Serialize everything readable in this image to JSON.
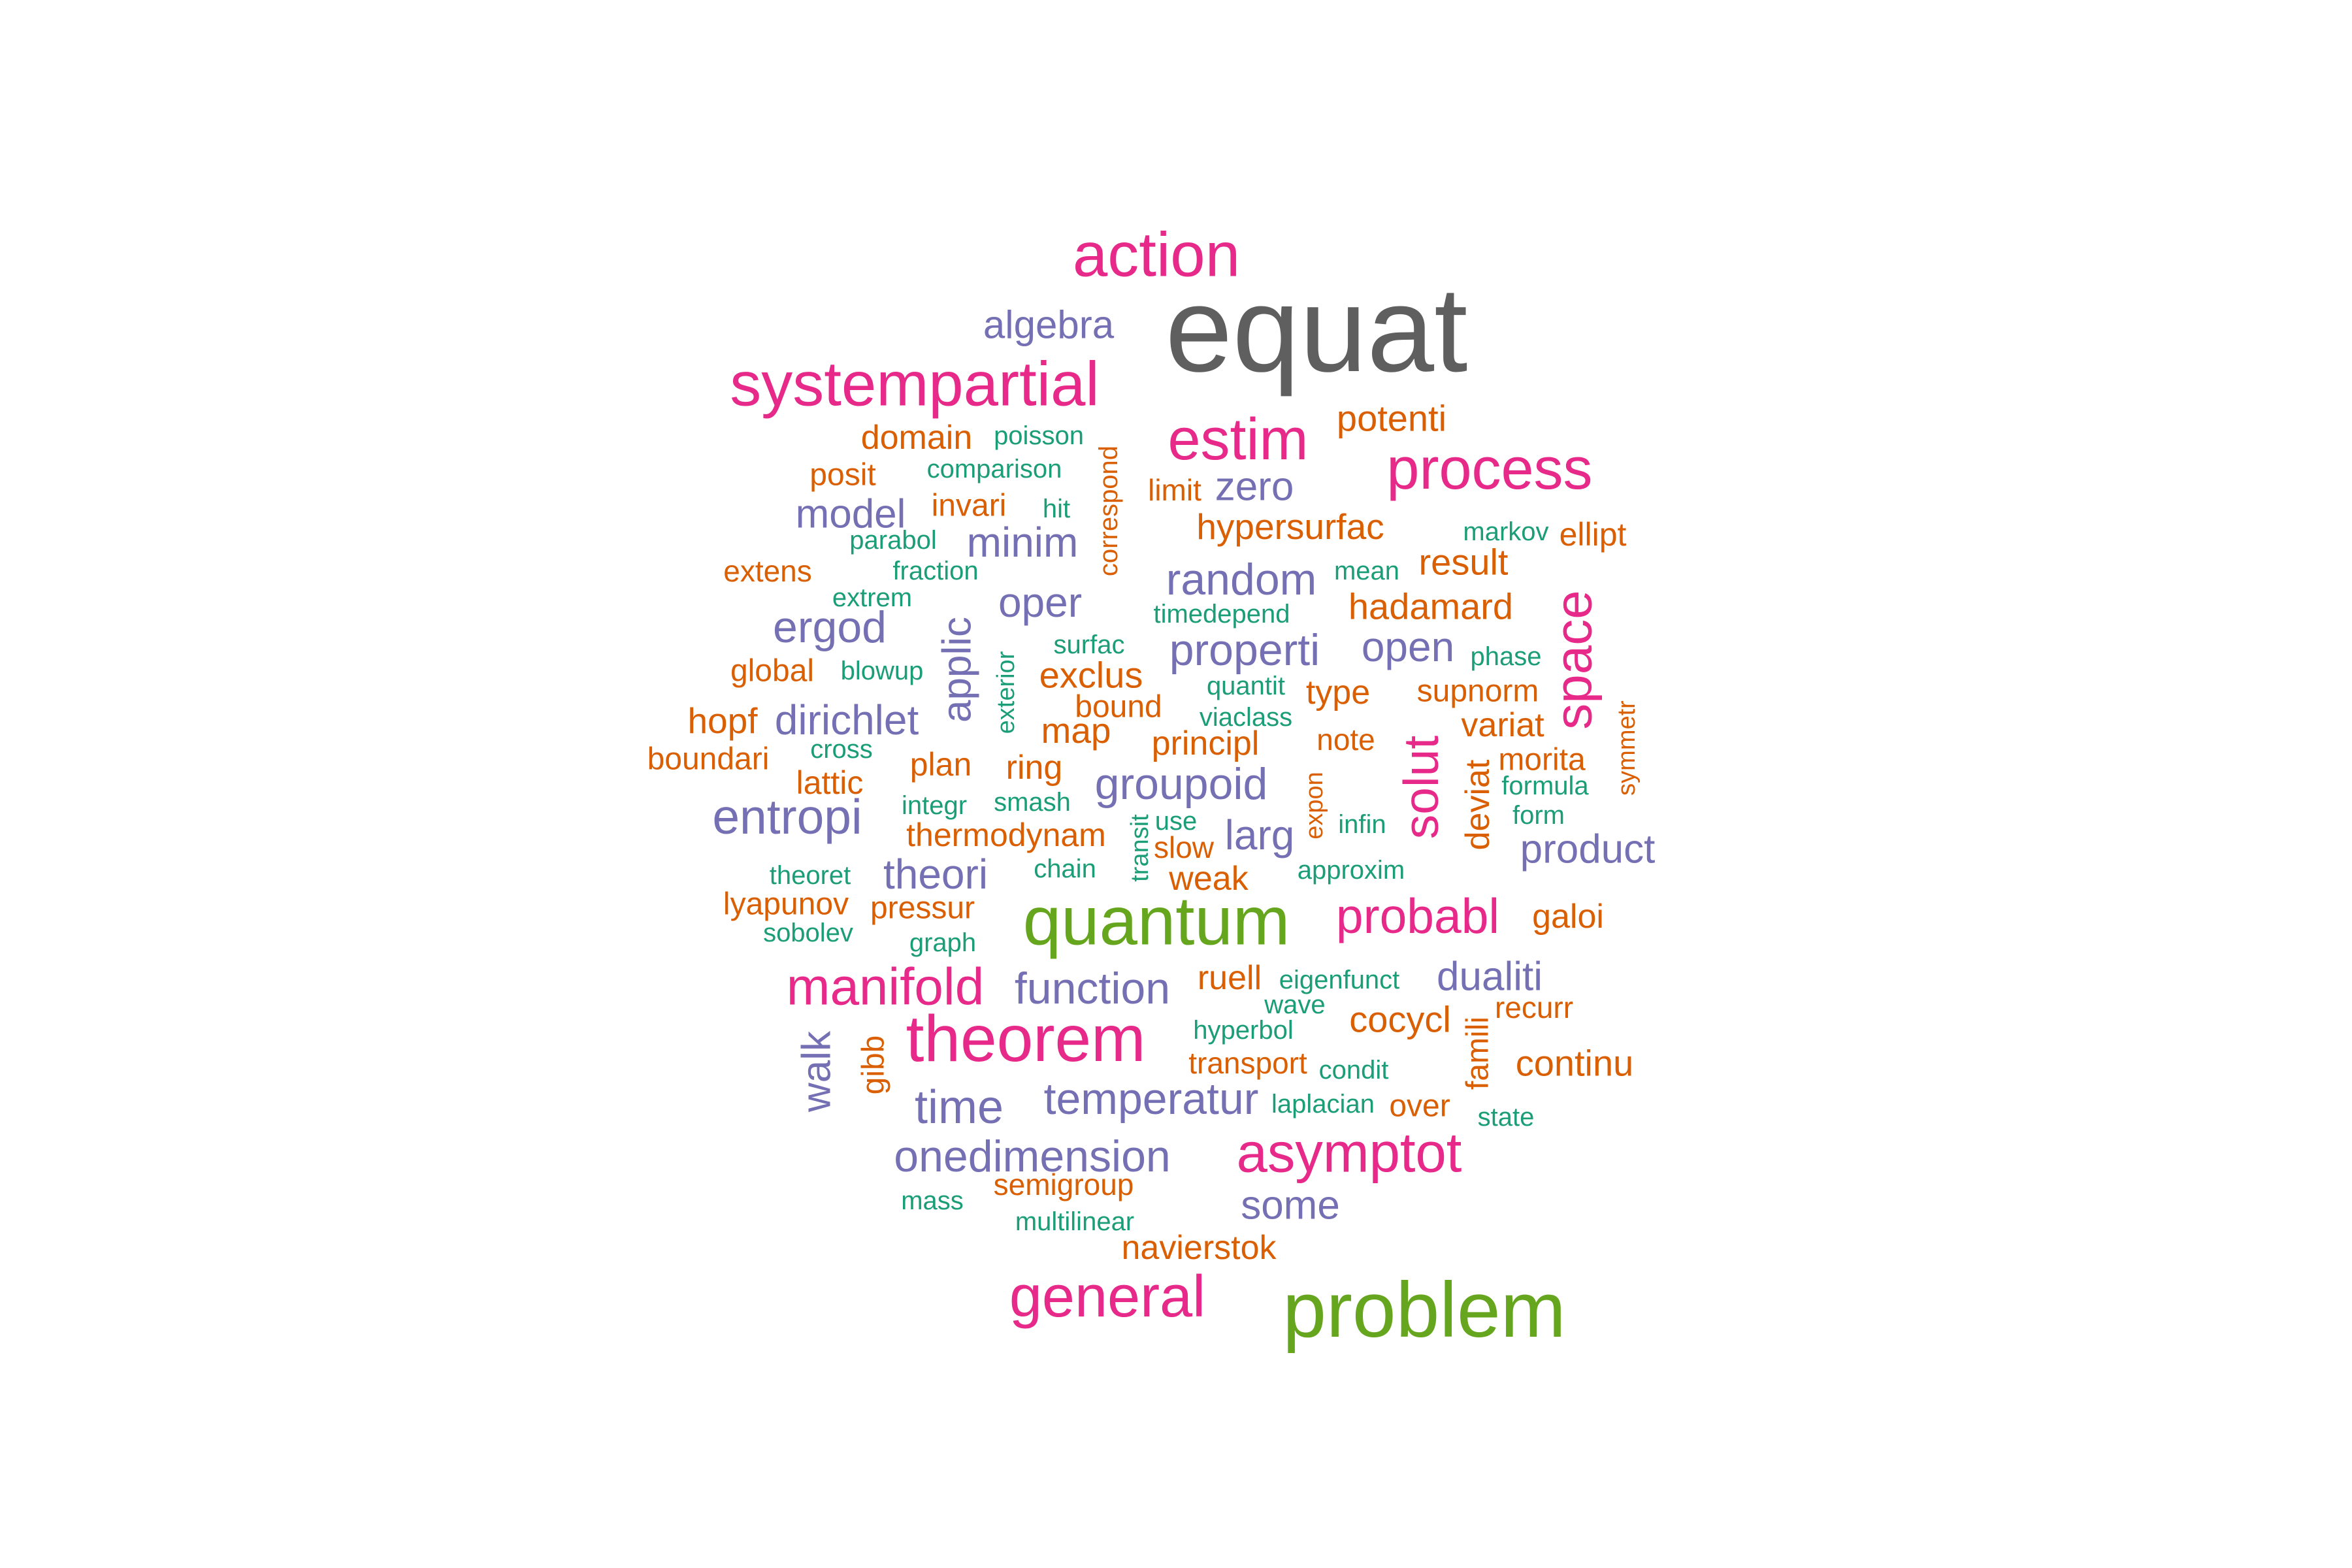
{
  "palette": {
    "gray": "#5f5f5f",
    "green": "#66a61e",
    "magenta": "#e7298a",
    "purple": "#7570b3",
    "orange": "#d95f02",
    "teal": "#1b9e77"
  },
  "words": [
    {
      "text": "equat",
      "color": "gray"
    },
    {
      "text": "problem",
      "color": "green"
    },
    {
      "text": "quantum",
      "color": "green"
    },
    {
      "text": "theorem",
      "color": "magenta"
    },
    {
      "text": "action",
      "color": "magenta"
    },
    {
      "text": "systempartial",
      "color": "magenta"
    },
    {
      "text": "estim",
      "color": "magenta"
    },
    {
      "text": "process",
      "color": "magenta"
    },
    {
      "text": "general",
      "color": "magenta"
    },
    {
      "text": "asymptot",
      "color": "magenta"
    },
    {
      "text": "manifold",
      "color": "magenta"
    },
    {
      "text": "probabl",
      "color": "magenta"
    },
    {
      "text": "space",
      "color": "magenta"
    },
    {
      "text": "solut",
      "color": "magenta"
    },
    {
      "text": "algebra",
      "color": "purple"
    },
    {
      "text": "entropi",
      "color": "purple"
    },
    {
      "text": "function",
      "color": "purple"
    },
    {
      "text": "random",
      "color": "purple"
    },
    {
      "text": "properti",
      "color": "purple"
    },
    {
      "text": "groupoid",
      "color": "purple"
    },
    {
      "text": "onedimension",
      "color": "purple"
    },
    {
      "text": "temperatur",
      "color": "purple"
    },
    {
      "text": "time",
      "color": "purple"
    },
    {
      "text": "ergod",
      "color": "purple"
    },
    {
      "text": "dirichlet",
      "color": "purple"
    },
    {
      "text": "model",
      "color": "purple"
    },
    {
      "text": "minim",
      "color": "purple"
    },
    {
      "text": "oper",
      "color": "purple"
    },
    {
      "text": "theori",
      "color": "purple"
    },
    {
      "text": "open",
      "color": "purple"
    },
    {
      "text": "zero",
      "color": "purple"
    },
    {
      "text": "larg",
      "color": "purple"
    },
    {
      "text": "product",
      "color": "purple"
    },
    {
      "text": "dualiti",
      "color": "purple"
    },
    {
      "text": "some",
      "color": "purple"
    },
    {
      "text": "walk",
      "color": "purple"
    },
    {
      "text": "applic",
      "color": "purple"
    },
    {
      "text": "potenti",
      "color": "orange"
    },
    {
      "text": "hypersurfac",
      "color": "orange"
    },
    {
      "text": "hadamard",
      "color": "orange"
    },
    {
      "text": "result",
      "color": "orange"
    },
    {
      "text": "ellipt",
      "color": "orange"
    },
    {
      "text": "domain",
      "color": "orange"
    },
    {
      "text": "posit",
      "color": "orange"
    },
    {
      "text": "invari",
      "color": "orange"
    },
    {
      "text": "limit",
      "color": "orange"
    },
    {
      "text": "extens",
      "color": "orange"
    },
    {
      "text": "global",
      "color": "orange"
    },
    {
      "text": "hopf",
      "color": "orange"
    },
    {
      "text": "boundari",
      "color": "orange"
    },
    {
      "text": "lattic",
      "color": "orange"
    },
    {
      "text": "exclus",
      "color": "orange"
    },
    {
      "text": "bound",
      "color": "orange"
    },
    {
      "text": "map",
      "color": "orange"
    },
    {
      "text": "type",
      "color": "orange"
    },
    {
      "text": "supnorm",
      "color": "orange"
    },
    {
      "text": "variat",
      "color": "orange"
    },
    {
      "text": "principl",
      "color": "orange"
    },
    {
      "text": "note",
      "color": "orange"
    },
    {
      "text": "morita",
      "color": "orange"
    },
    {
      "text": "plan",
      "color": "orange"
    },
    {
      "text": "ring",
      "color": "orange"
    },
    {
      "text": "thermodynam",
      "color": "orange"
    },
    {
      "text": "slow",
      "color": "orange"
    },
    {
      "text": "weak",
      "color": "orange"
    },
    {
      "text": "lyapunov",
      "color": "orange"
    },
    {
      "text": "pressur",
      "color": "orange"
    },
    {
      "text": "galoi",
      "color": "orange"
    },
    {
      "text": "ruell",
      "color": "orange"
    },
    {
      "text": "cocycl",
      "color": "orange"
    },
    {
      "text": "recurr",
      "color": "orange"
    },
    {
      "text": "continu",
      "color": "orange"
    },
    {
      "text": "transport",
      "color": "orange"
    },
    {
      "text": "over",
      "color": "orange"
    },
    {
      "text": "semigroup",
      "color": "orange"
    },
    {
      "text": "navierstok",
      "color": "orange"
    },
    {
      "text": "deviat",
      "color": "orange"
    },
    {
      "text": "famili",
      "color": "orange"
    },
    {
      "text": "gibb",
      "color": "orange"
    },
    {
      "text": "correspond",
      "color": "orange"
    },
    {
      "text": "expon",
      "color": "orange"
    },
    {
      "text": "symmetr",
      "color": "orange"
    },
    {
      "text": "poisson",
      "color": "teal"
    },
    {
      "text": "comparison",
      "color": "teal"
    },
    {
      "text": "hit",
      "color": "teal"
    },
    {
      "text": "parabol",
      "color": "teal"
    },
    {
      "text": "fraction",
      "color": "teal"
    },
    {
      "text": "extrem",
      "color": "teal"
    },
    {
      "text": "blowup",
      "color": "teal"
    },
    {
      "text": "cross",
      "color": "teal"
    },
    {
      "text": "integr",
      "color": "teal"
    },
    {
      "text": "smash",
      "color": "teal"
    },
    {
      "text": "markov",
      "color": "teal"
    },
    {
      "text": "mean",
      "color": "teal"
    },
    {
      "text": "timedepend",
      "color": "teal"
    },
    {
      "text": "surfac",
      "color": "teal"
    },
    {
      "text": "quantit",
      "color": "teal"
    },
    {
      "text": "viaclass",
      "color": "teal"
    },
    {
      "text": "phase",
      "color": "teal"
    },
    {
      "text": "formula",
      "color": "teal"
    },
    {
      "text": "form",
      "color": "teal"
    },
    {
      "text": "use",
      "color": "teal"
    },
    {
      "text": "infin",
      "color": "teal"
    },
    {
      "text": "approxim",
      "color": "teal"
    },
    {
      "text": "chain",
      "color": "teal"
    },
    {
      "text": "theoret",
      "color": "teal"
    },
    {
      "text": "sobolev",
      "color": "teal"
    },
    {
      "text": "graph",
      "color": "teal"
    },
    {
      "text": "eigenfunct",
      "color": "teal"
    },
    {
      "text": "wave",
      "color": "teal"
    },
    {
      "text": "hyperbol",
      "color": "teal"
    },
    {
      "text": "condit",
      "color": "teal"
    },
    {
      "text": "laplacian",
      "color": "teal"
    },
    {
      "text": "state",
      "color": "teal"
    },
    {
      "text": "mass",
      "color": "teal"
    },
    {
      "text": "multilinear",
      "color": "teal"
    },
    {
      "text": "exterior",
      "color": "teal"
    },
    {
      "text": "transit",
      "color": "teal"
    }
  ]
}
